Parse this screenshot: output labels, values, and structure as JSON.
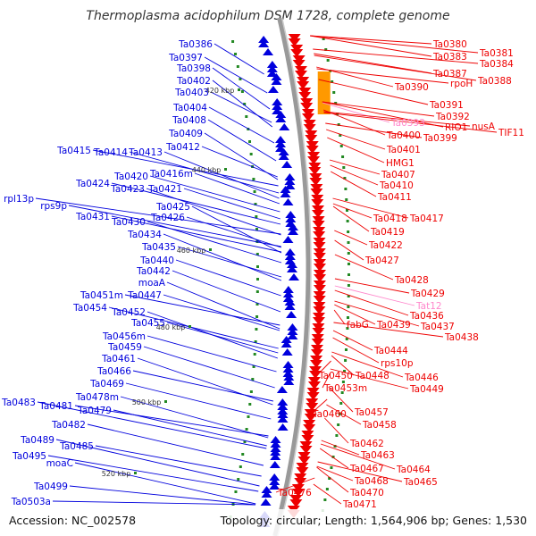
{
  "title": "Thermoplasma acidophilum DSM 1728, complete genome",
  "footer": {
    "accession": "Accession: NC_002578",
    "summary": "Topology: circular; Length: 1,564,906 bp; Genes: 1,530"
  },
  "colors": {
    "forward_strand": "#0000dd",
    "reverse_strand": "#ee0000",
    "rna_gene": "#ff88cc",
    "backbone": "#999999",
    "tick": "#228822"
  },
  "scale_labels": [
    "420 kbp",
    "440 kbp",
    "460 kbp",
    "480 kbp",
    "500 kbp",
    "520 kbp"
  ],
  "left_labels": [
    "Ta0386",
    "Ta0397",
    "Ta0398",
    "Ta0402",
    "Ta0403",
    "Ta0404",
    "Ta0408",
    "Ta0409",
    "Ta0412",
    "Ta0415",
    "Ta0414",
    "Ta0413",
    "Ta0416m",
    "Ta0420",
    "Ta0424",
    "Ta0423",
    "Ta0421",
    "rpl13p",
    "rps9p",
    "Ta0425",
    "Ta0426",
    "Ta0431",
    "Ta0430",
    "Ta0434",
    "Ta0435",
    "Ta0440",
    "Ta0442",
    "moaA",
    "Ta0451m",
    "Ta0447",
    "Ta0454",
    "Ta0452",
    "Ta0455",
    "Ta0456m",
    "Ta0459",
    "Ta0461",
    "Ta0466",
    "Ta0469",
    "Ta0478m",
    "Ta0483",
    "Ta0481",
    "Ta0479",
    "Ta0482",
    "Ta0489",
    "Ta0485",
    "Ta0495",
    "moaC",
    "Ta0499",
    "Ta0503a"
  ],
  "right_labels": [
    "Ta0380",
    "Ta0381",
    "Ta0383",
    "Ta0384",
    "Ta0387",
    "Ta0388",
    "rpoH",
    "Ta0390",
    "Ta0391",
    "Ta0392",
    "Ta0393",
    "RIO1",
    "nusA",
    "TIF11",
    "Ta0400",
    "Ta0399",
    "Ta0401",
    "HMG1",
    "Ta0407",
    "Ta0410",
    "Ta0411",
    "Ta0418",
    "Ta0417",
    "Ta0419",
    "Ta0422",
    "Ta0427",
    "Ta0428",
    "Ta0429",
    "Tat12",
    "Ta0436",
    "fabG",
    "Ta0439",
    "Ta0437",
    "Ta0438",
    "Ta0444",
    "rps10p",
    "Ta0450",
    "Ta0448",
    "Ta0446",
    "Ta0453m",
    "Ta0449",
    "Ta0457",
    "Ta0460",
    "Ta0458",
    "Ta0462",
    "Ta0463",
    "Ta0467",
    "Ta0464",
    "Ta0468",
    "Ta0465",
    "Ta0470",
    "Ta0476",
    "Ta0471"
  ]
}
